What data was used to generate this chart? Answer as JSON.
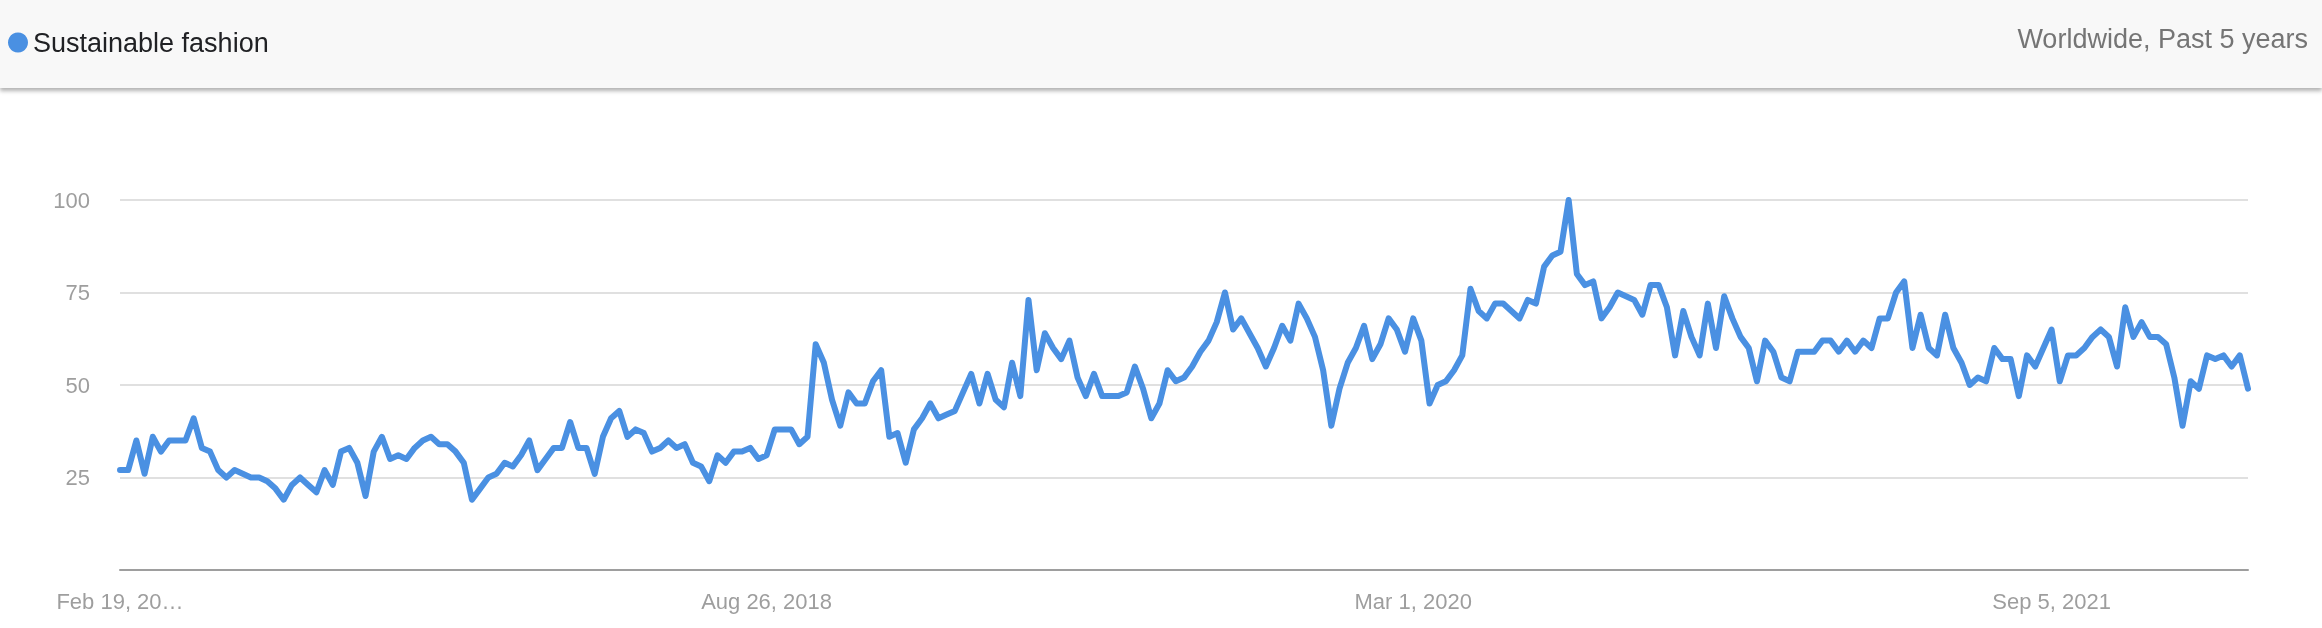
{
  "chart_data": {
    "type": "line",
    "subtitle": "Worldwide, Past 5 years",
    "categories": [
      "Feb 19, 20…",
      null,
      null,
      null,
      null,
      null,
      null,
      null,
      null,
      null,
      null,
      null,
      null,
      null,
      null,
      null,
      null,
      null,
      null,
      null,
      null,
      null,
      null,
      null,
      null,
      null,
      null,
      null,
      null,
      null,
      null,
      null,
      null,
      null,
      null,
      null,
      null,
      null,
      null,
      null,
      null,
      null,
      null,
      null,
      null,
      null,
      null,
      null,
      null,
      null,
      null,
      null,
      null,
      null,
      null,
      null,
      null,
      null,
      null,
      null,
      null,
      null,
      null,
      null,
      null,
      null,
      null,
      null,
      null,
      null,
      null,
      null,
      null,
      null,
      null,
      null,
      null,
      null,
      null,
      "Aug 26, 2018",
      null,
      null,
      null,
      null,
      null,
      null,
      null,
      null,
      null,
      null,
      null,
      null,
      null,
      null,
      null,
      null,
      null,
      null,
      null,
      null,
      null,
      null,
      null,
      null,
      null,
      null,
      null,
      null,
      null,
      null,
      null,
      null,
      null,
      null,
      null,
      null,
      null,
      null,
      null,
      null,
      null,
      null,
      null,
      null,
      null,
      null,
      null,
      null,
      null,
      null,
      null,
      null,
      null,
      null,
      null,
      null,
      null,
      null,
      null,
      null,
      null,
      null,
      null,
      null,
      null,
      null,
      null,
      null,
      null,
      null,
      null,
      null,
      null,
      null,
      null,
      null,
      null,
      null,
      "Mar 1, 2020",
      null,
      null,
      null,
      null,
      null,
      null,
      null,
      null,
      null,
      null,
      null,
      null,
      null,
      null,
      null,
      null,
      null,
      null,
      null,
      null,
      null,
      null,
      null,
      null,
      null,
      null,
      null,
      null,
      null,
      null,
      null,
      null,
      null,
      null,
      null,
      null,
      null,
      null,
      null,
      null,
      null,
      null,
      null,
      null,
      null,
      null,
      null,
      null,
      null,
      null,
      null,
      null,
      null,
      null,
      null,
      null,
      null,
      null,
      null,
      null,
      null,
      null,
      null,
      null,
      null,
      null,
      null,
      null,
      null,
      null,
      null,
      null,
      null,
      null,
      null,
      null,
      null,
      "Sep 5, 2021",
      null,
      null,
      null,
      null,
      null,
      null,
      null,
      null,
      null,
      null,
      null,
      null,
      null,
      null,
      null,
      null,
      null,
      null,
      null,
      null,
      null,
      null,
      null,
      null
    ],
    "series": [
      {
        "name": "Sustainable fashion",
        "color": "#4a90e2",
        "values": [
          27,
          27,
          35,
          26,
          36,
          32,
          35,
          35,
          35,
          41,
          33,
          32,
          27,
          25,
          27,
          26,
          25,
          25,
          24,
          22,
          19,
          23,
          25,
          23,
          21,
          27,
          23,
          32,
          33,
          29,
          20,
          32,
          36,
          30,
          31,
          30,
          33,
          35,
          36,
          34,
          34,
          32,
          29,
          19,
          22,
          25,
          26,
          29,
          28,
          31,
          35,
          27,
          30,
          33,
          33,
          40,
          33,
          33,
          26,
          36,
          41,
          43,
          36,
          38,
          37,
          32,
          33,
          35,
          33,
          34,
          29,
          28,
          24,
          31,
          29,
          32,
          32,
          33,
          30,
          31,
          38,
          38,
          38,
          34,
          36,
          61,
          56,
          46,
          39,
          48,
          45,
          45,
          51,
          54,
          36,
          37,
          29,
          38,
          41,
          45,
          41,
          42,
          43,
          48,
          53,
          45,
          53,
          46,
          44,
          56,
          47,
          73,
          54,
          64,
          60,
          57,
          62,
          52,
          47,
          53,
          47,
          47,
          47,
          48,
          55,
          49,
          41,
          45,
          54,
          51,
          52,
          55,
          59,
          62,
          67,
          75,
          65,
          68,
          64,
          60,
          55,
          60,
          66,
          62,
          72,
          68,
          63,
          54,
          39,
          49,
          56,
          60,
          66,
          57,
          61,
          68,
          65,
          59,
          68,
          62,
          45,
          50,
          51,
          54,
          58,
          76,
          70,
          68,
          72,
          72,
          70,
          68,
          73,
          72,
          82,
          85,
          86,
          100,
          80,
          77,
          78,
          68,
          71,
          75,
          74,
          73,
          69,
          77,
          77,
          71,
          58,
          70,
          63,
          58,
          72,
          60,
          74,
          68,
          63,
          60,
          51,
          62,
          59,
          52,
          51,
          59,
          59,
          59,
          62,
          62,
          59,
          62,
          59,
          62,
          60,
          68,
          68,
          75,
          78,
          60,
          69,
          60,
          58,
          69,
          60,
          56,
          50,
          52,
          51,
          60,
          57,
          57,
          47,
          58,
          55,
          60,
          65,
          51,
          58,
          58,
          60,
          63,
          65,
          63,
          55,
          71,
          63,
          67,
          63,
          63,
          61,
          52,
          39,
          51,
          49,
          58,
          57,
          58,
          55,
          58,
          49
        ]
      }
    ],
    "ylim": [
      0,
      100
    ],
    "yticks": [
      25,
      50,
      75,
      100
    ],
    "grid": "y",
    "legend": "top left",
    "marker": "none",
    "line_style": "solid"
  }
}
